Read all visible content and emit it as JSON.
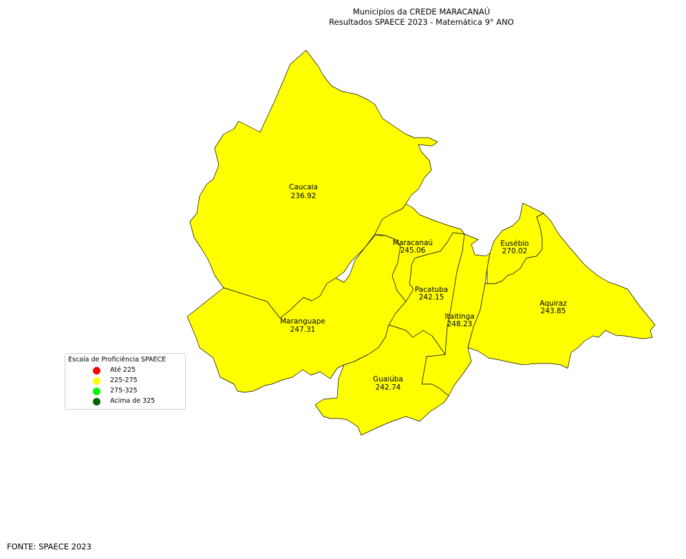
{
  "title_line1": "Municipíos da CREDE MARACANAÚ",
  "title_line2": "Resultados SPAECE 2023 - Matemática 9° ANO",
  "fill_color": "#ffff00",
  "municipalities": [
    {
      "name": "Caucaia",
      "score": "236.92"
    },
    {
      "name": "Maracanaú",
      "score": "245.06"
    },
    {
      "name": "Eusébio",
      "score": "270.02"
    },
    {
      "name": "Pacatuba",
      "score": "242.15"
    },
    {
      "name": "Aquiraz",
      "score": "243.85"
    },
    {
      "name": "Itaitinga",
      "score": "248.23"
    },
    {
      "name": "Maranguape",
      "score": "247.31"
    },
    {
      "name": "Guaiúba",
      "score": "242.74"
    }
  ],
  "legend": {
    "title": "Escala de Proficiência SPAECE",
    "items": [
      {
        "label": "Até 225",
        "color": "#ff0000"
      },
      {
        "label": "225-275",
        "color": "#ffff00"
      },
      {
        "label": "275-325",
        "color": "#00ff00"
      },
      {
        "label": "Acima de 325",
        "color": "#006400"
      }
    ]
  },
  "source": "FONTE: SPAECE 2023"
}
